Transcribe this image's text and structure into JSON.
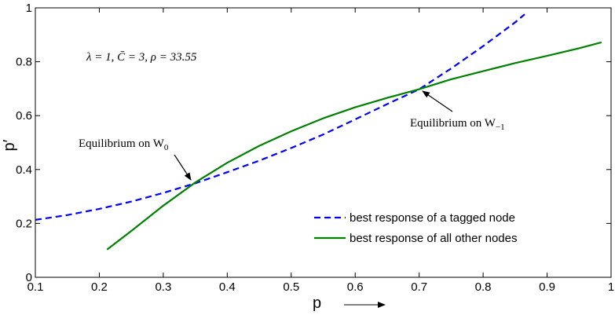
{
  "chart_data": {
    "type": "line",
    "title": "",
    "xlabel": "p",
    "ylabel": "p′",
    "xlim": [
      0.1,
      1.0
    ],
    "ylim": [
      0,
      1
    ],
    "grid": false,
    "legend_position": "bottom-right",
    "x_ticks": [
      "0.1",
      "0.2",
      "0.3",
      "0.4",
      "0.5",
      "0.6",
      "0.7",
      "0.8",
      "0.9",
      "1"
    ],
    "y_ticks": [
      "0",
      "0.2",
      "0.4",
      "0.6",
      "0.8",
      "1"
    ],
    "parameter_text": "λ = 1, C̄ = 3, ρ = 33.55",
    "series": [
      {
        "name": "best response of a tagged node",
        "color": "#0000ff",
        "style": "dashed",
        "x": [
          0.1,
          0.15,
          0.2,
          0.25,
          0.3,
          0.35,
          0.4,
          0.45,
          0.5,
          0.55,
          0.6,
          0.65,
          0.7,
          0.75,
          0.8,
          0.85,
          0.865
        ],
        "y": [
          0.213,
          0.231,
          0.254,
          0.281,
          0.313,
          0.349,
          0.39,
          0.433,
          0.48,
          0.53,
          0.586,
          0.643,
          0.698,
          0.775,
          0.858,
          0.946,
          0.976
        ]
      },
      {
        "name": "best response of all other nodes",
        "color": "#008000",
        "style": "solid",
        "x": [
          0.212,
          0.25,
          0.3,
          0.35,
          0.4,
          0.45,
          0.5,
          0.55,
          0.6,
          0.65,
          0.7,
          0.75,
          0.8,
          0.85,
          0.9,
          0.95,
          0.985
        ],
        "y": [
          0.103,
          0.172,
          0.266,
          0.352,
          0.425,
          0.488,
          0.542,
          0.59,
          0.631,
          0.666,
          0.698,
          0.735,
          0.765,
          0.795,
          0.822,
          0.85,
          0.872
        ]
      }
    ],
    "annotations": [
      {
        "text_main": "Equilibrium on W",
        "subscript": "0",
        "x": 0.345,
        "y": 0.351
      },
      {
        "text_main": "Equilibrium on W",
        "subscript": "−1",
        "x": 0.7,
        "y": 0.698
      }
    ]
  }
}
